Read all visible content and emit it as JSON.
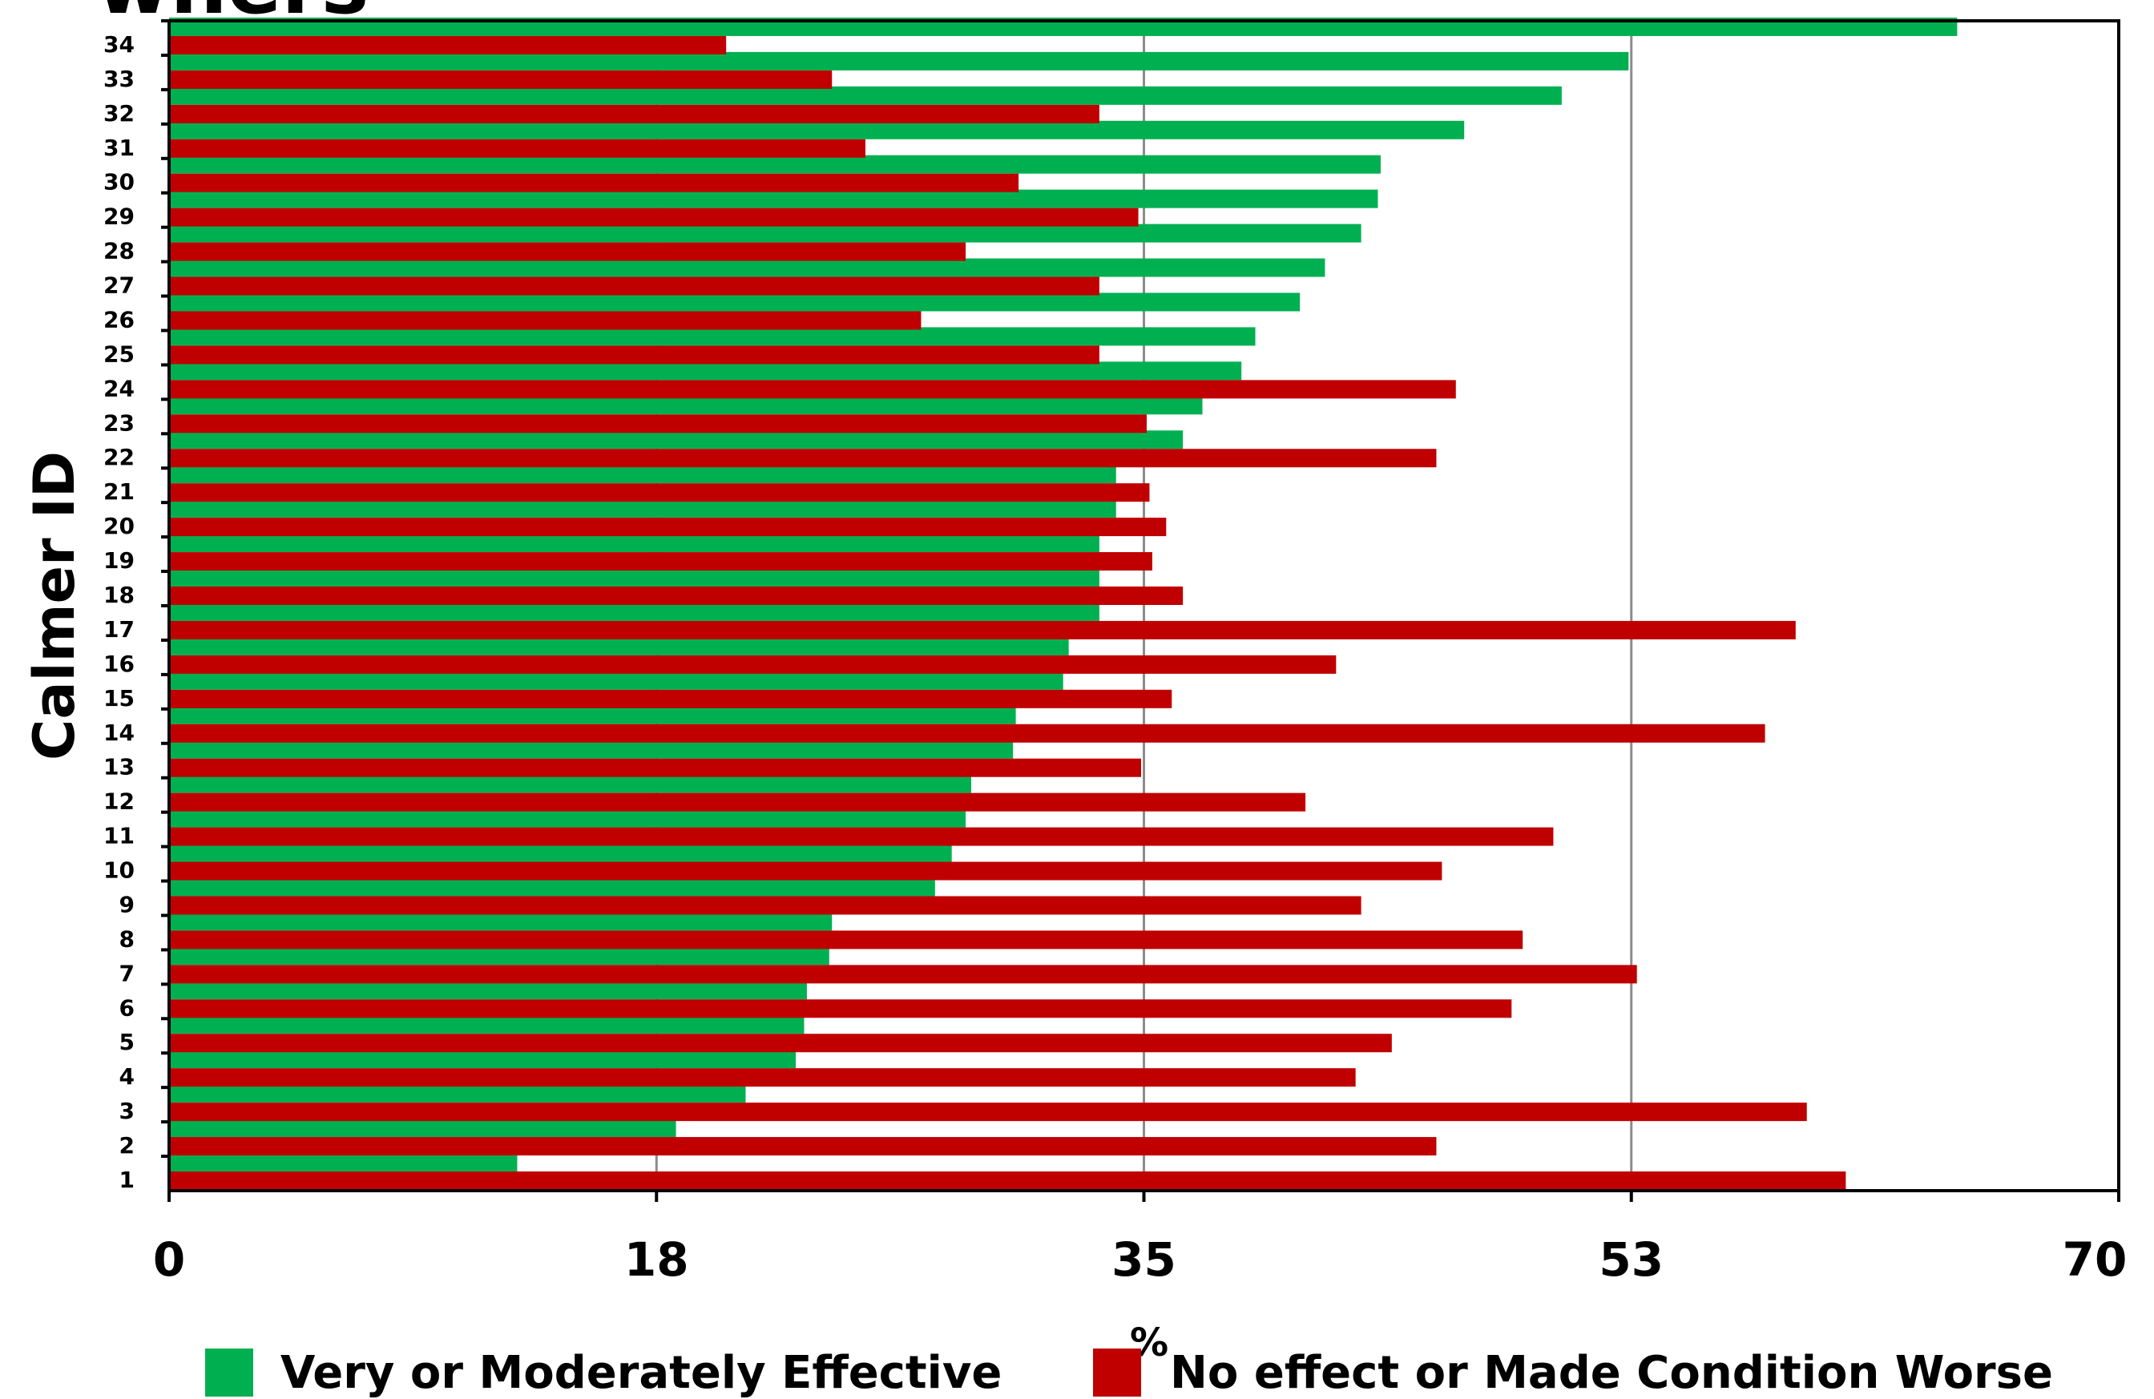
{
  "title_fragment": "wners",
  "colors": {
    "effective": "#00b050",
    "no_effect": "#c00000"
  },
  "chart_data": {
    "type": "bar",
    "orientation": "horizontal",
    "ylabel": "Calmer ID",
    "xlabel": "%",
    "xlim": [
      0,
      70
    ],
    "xticks": [
      "0",
      "18",
      "35",
      "53",
      "70"
    ],
    "xtick_values": [
      0,
      17.5,
      35,
      52.5,
      70
    ],
    "grid": "vertical",
    "legend_position": "bottom",
    "categories": [
      "1",
      "2",
      "3",
      "4",
      "5",
      "6",
      "7",
      "8",
      "9",
      "10",
      "11",
      "12",
      "13",
      "14",
      "15",
      "16",
      "17",
      "18",
      "19",
      "20",
      "21",
      "22",
      "23",
      "24",
      "25",
      "26",
      "27",
      "28",
      "29",
      "30",
      "31",
      "32",
      "33",
      "34"
    ],
    "series": [
      {
        "name": "Very or Moderately Effective",
        "color": "#00b050",
        "values": [
          12.5,
          18.2,
          20.7,
          22.5,
          22.8,
          22.9,
          23.7,
          23.8,
          27.5,
          28.1,
          28.6,
          28.8,
          30.3,
          30.4,
          32.1,
          32.3,
          33.4,
          33.4,
          33.4,
          34.0,
          34.0,
          36.4,
          37.1,
          38.5,
          39.0,
          40.6,
          41.5,
          42.8,
          43.4,
          43.5,
          46.5,
          50.0,
          52.4,
          64.2
        ]
      },
      {
        "name": "No effect or Made Condition Worse",
        "color": "#c00000",
        "values": [
          60.2,
          45.5,
          58.8,
          42.6,
          43.9,
          48.2,
          52.7,
          48.6,
          42.8,
          45.7,
          49.7,
          40.8,
          34.9,
          57.3,
          36.0,
          41.9,
          58.4,
          36.4,
          35.3,
          35.8,
          35.2,
          45.5,
          35.1,
          46.2,
          33.4,
          27.0,
          33.4,
          28.6,
          34.8,
          30.5,
          25.0,
          33.4,
          23.8,
          20.0
        ]
      }
    ]
  }
}
